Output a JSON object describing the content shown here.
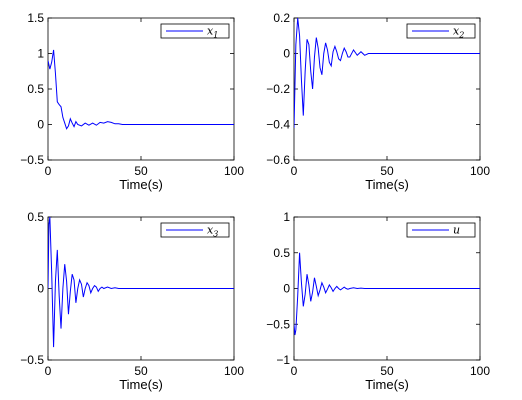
{
  "chart_data": [
    {
      "type": "line",
      "xlabel": "Time(s)",
      "xlim": [
        0,
        100
      ],
      "ylim": [
        -0.5,
        1.5
      ],
      "xticks": [
        0,
        50,
        100
      ],
      "yticks": [
        -0.5,
        0,
        0.5,
        1,
        1.5
      ],
      "ytick_labels": [
        "−0.5",
        "0",
        "0.5",
        "1",
        "1.5"
      ],
      "xtick_labels": [
        "0",
        "50",
        "100"
      ],
      "legend": {
        "symbol": "x",
        "subscript": "1",
        "position": "top-right"
      },
      "series": [
        {
          "color": "#0000ff",
          "x": [
            0,
            1,
            2,
            3,
            4,
            5,
            6,
            7,
            8,
            9,
            10,
            11,
            12,
            13,
            14,
            15,
            16,
            18,
            20,
            22,
            24,
            26,
            28,
            30,
            32,
            34,
            36,
            38,
            40,
            42,
            45,
            50,
            60,
            70,
            80,
            90,
            100
          ],
          "y": [
            0.9,
            0.78,
            0.88,
            1.05,
            0.72,
            0.32,
            0.28,
            0.25,
            0.1,
            0.02,
            -0.06,
            -0.02,
            0.08,
            0.02,
            -0.03,
            0.04,
            0.0,
            -0.02,
            0.02,
            -0.01,
            0.02,
            -0.01,
            0.03,
            0.02,
            0.04,
            0.03,
            0.01,
            0.01,
            0.0,
            0.0,
            0.0,
            0.0,
            0.0,
            0.0,
            0.0,
            0.0,
            0.0
          ]
        }
      ]
    },
    {
      "type": "line",
      "xlabel": "Time(s)",
      "xlim": [
        0,
        100
      ],
      "ylim": [
        -0.6,
        0.2
      ],
      "xticks": [
        0,
        50,
        100
      ],
      "yticks": [
        -0.6,
        -0.4,
        -0.2,
        0,
        0.2
      ],
      "ytick_labels": [
        "−0.6",
        "−0.4",
        "−0.2",
        "0",
        "0.2"
      ],
      "xtick_labels": [
        "0",
        "50",
        "100"
      ],
      "legend": {
        "symbol": "x",
        "subscript": "2",
        "position": "top-right"
      },
      "series": [
        {
          "color": "#0000ff",
          "x": [
            0,
            1,
            2,
            3,
            4,
            5,
            6,
            7,
            8,
            9,
            10,
            11,
            12,
            13,
            14,
            15,
            16,
            17,
            18,
            19,
            20,
            21,
            22,
            23,
            24,
            25,
            26,
            27,
            28,
            29,
            30,
            32,
            34,
            36,
            38,
            40,
            45,
            50,
            60,
            70,
            80,
            90,
            100
          ],
          "y": [
            -0.42,
            0.05,
            0.2,
            0.1,
            -0.15,
            -0.35,
            -0.1,
            0.08,
            0.05,
            -0.1,
            -0.2,
            -0.02,
            0.09,
            0.03,
            -0.08,
            -0.12,
            0.0,
            0.06,
            0.02,
            -0.05,
            -0.07,
            0.01,
            0.04,
            0.01,
            -0.03,
            -0.04,
            0.0,
            0.03,
            0.01,
            -0.02,
            -0.02,
            0.02,
            -0.01,
            0.01,
            -0.01,
            0.0,
            0.0,
            0.0,
            0.0,
            0.0,
            0.0,
            0.0,
            0.0
          ]
        }
      ]
    },
    {
      "type": "line",
      "xlabel": "Time(s)",
      "xlim": [
        0,
        100
      ],
      "ylim": [
        -0.5,
        0.5
      ],
      "xticks": [
        0,
        50,
        100
      ],
      "yticks": [
        -0.5,
        0,
        0.5
      ],
      "ytick_labels": [
        "−0.5",
        "0",
        "0.5"
      ],
      "xtick_labels": [
        "0",
        "50",
        "100"
      ],
      "legend": {
        "symbol": "x",
        "subscript": "3",
        "position": "top-right"
      },
      "series": [
        {
          "color": "#0000ff",
          "x": [
            0,
            0.5,
            1,
            2,
            3,
            4,
            5,
            6,
            7,
            8,
            9,
            10,
            11,
            12,
            13,
            14,
            15,
            16,
            17,
            18,
            19,
            20,
            21,
            22,
            23,
            24,
            25,
            26,
            27,
            28,
            29,
            30,
            32,
            34,
            36,
            38,
            40,
            45,
            50,
            60,
            70,
            80,
            90,
            100
          ],
          "y": [
            0.0,
            0.45,
            0.5,
            0.1,
            -0.41,
            0.05,
            0.27,
            -0.05,
            -0.28,
            0.0,
            0.17,
            0.05,
            -0.18,
            -0.02,
            0.1,
            0.06,
            -0.1,
            0.0,
            0.06,
            0.03,
            -0.06,
            0.0,
            0.04,
            0.02,
            -0.03,
            0.0,
            0.02,
            0.01,
            -0.02,
            0.0,
            0.01,
            0.0,
            0.01,
            0.0,
            0.005,
            0.0,
            0.0,
            0.0,
            0.0,
            0.0,
            0.0,
            0.0,
            0.0,
            0.0
          ]
        }
      ]
    },
    {
      "type": "line",
      "xlabel": "Time(s)",
      "xlim": [
        0,
        100
      ],
      "ylim": [
        -1,
        1
      ],
      "xticks": [
        0,
        50,
        100
      ],
      "yticks": [
        -1,
        -0.5,
        0,
        0.5,
        1
      ],
      "ytick_labels": [
        "−1",
        "−0.5",
        "0",
        "0.5",
        "1"
      ],
      "xtick_labels": [
        "0",
        "50",
        "100"
      ],
      "legend": {
        "symbol": "u",
        "subscript": "",
        "position": "top-right"
      },
      "series": [
        {
          "color": "#0000ff",
          "x": [
            0,
            0.5,
            1,
            2,
            3,
            4,
            5,
            6,
            7,
            8,
            9,
            10,
            11,
            12,
            13,
            14,
            15,
            16,
            17,
            18,
            19,
            20,
            21,
            22,
            23,
            24,
            25,
            26,
            27,
            28,
            29,
            30,
            32,
            34,
            36,
            38,
            40,
            45,
            50,
            60,
            70,
            80,
            90,
            100
          ],
          "y": [
            -0.5,
            -0.65,
            -0.58,
            -0.1,
            0.5,
            0.08,
            -0.25,
            -0.08,
            0.2,
            0.05,
            -0.18,
            -0.05,
            0.15,
            0.03,
            -0.1,
            -0.02,
            0.08,
            0.02,
            -0.06,
            -0.01,
            0.05,
            0.01,
            -0.04,
            0.0,
            0.03,
            0.0,
            -0.02,
            0.0,
            0.02,
            0.0,
            -0.01,
            0.0,
            0.01,
            0.0,
            0.005,
            0.0,
            0.0,
            0.0,
            0.0,
            0.0,
            0.0,
            0.0,
            0.0,
            0.0
          ]
        }
      ]
    }
  ]
}
